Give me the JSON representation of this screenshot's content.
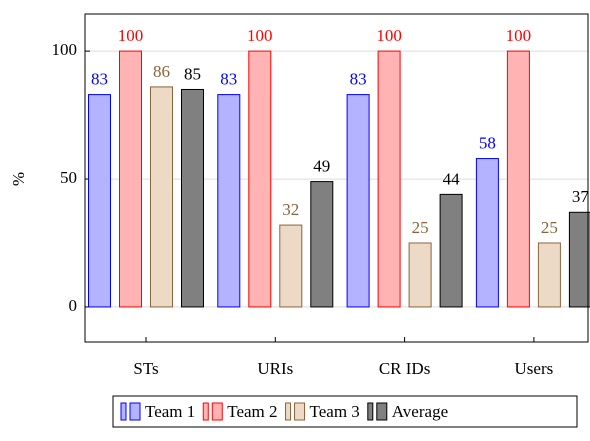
{
  "chart_data": {
    "type": "bar",
    "y_label": "%",
    "categories": [
      "STs",
      "URIs",
      "CR IDs",
      "Users"
    ],
    "series": [
      {
        "name": "Team 1",
        "color": "#0000ff",
        "fill": "#b3b3ff",
        "values": [
          83,
          83,
          83,
          58
        ]
      },
      {
        "name": "Team 2",
        "color": "#ff0000",
        "fill": "#ffb3b3",
        "values": [
          100,
          100,
          100,
          100
        ]
      },
      {
        "name": "Team 3",
        "color": "#8c6239",
        "fill": "#ecdac6",
        "values": [
          86,
          32,
          25,
          25
        ]
      },
      {
        "name": "Average",
        "color": "#000000",
        "fill": "#808080",
        "values": [
          85,
          49,
          44,
          37
        ]
      }
    ],
    "ylim": [
      -13.7,
      114.5
    ],
    "yticks": [
      0,
      50,
      100
    ],
    "grid": true,
    "legend": "bottom"
  }
}
